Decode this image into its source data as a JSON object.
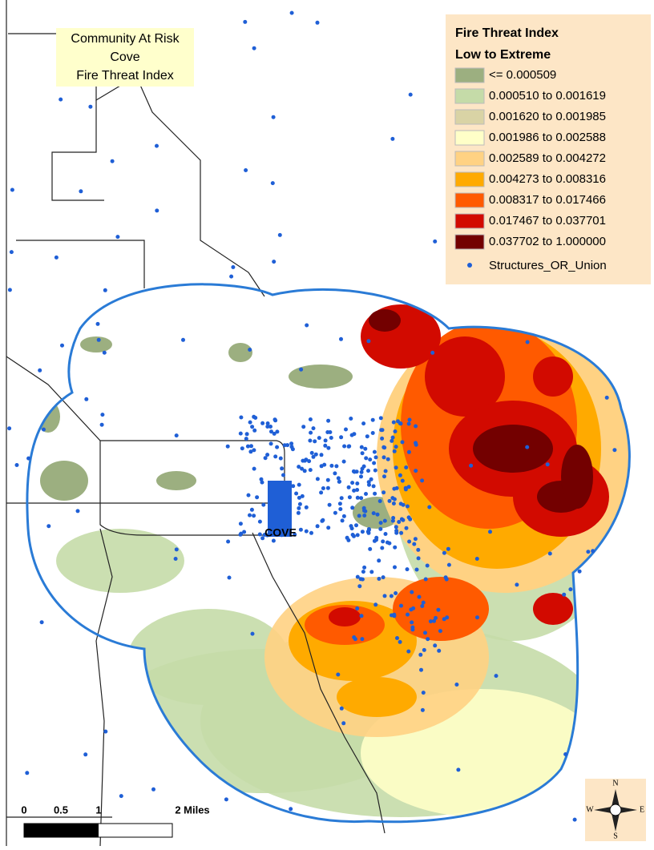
{
  "title_box": {
    "lines": [
      "Community At Risk",
      "Cove",
      "Fire Threat Index"
    ]
  },
  "legend": {
    "title": "Fire Threat Index",
    "subtitle": "Low to Extreme",
    "items": [
      {
        "label": "<=  0.000509",
        "color": "#9caf80"
      },
      {
        "label": "0.000510  to  0.001619",
        "color": "#c5dba8"
      },
      {
        "label": "0.001620  to  0.001985",
        "color": "#d9d3a5"
      },
      {
        "label": "0.001986  to  0.002588",
        "color": "#ffffc8"
      },
      {
        "label": "0.002589  to  0.004272",
        "color": "#ffd283"
      },
      {
        "label": "0.004273  to  0.008316",
        "color": "#ffaa00"
      },
      {
        "label": "0.008317  to  0.017466",
        "color": "#ff5a00"
      },
      {
        "label": "0.017467  to  0.037701",
        "color": "#d20a00"
      },
      {
        "label": "0.037702  to  1.000000",
        "color": "#730000"
      }
    ],
    "points": {
      "label": "Structures_OR_Union",
      "color": "#1f5fd6"
    }
  },
  "map_labels": {
    "town": "COVE"
  },
  "scale_bar": {
    "labels": [
      "0",
      "0.5",
      "1",
      "2 Miles"
    ]
  },
  "compass": {
    "labels": [
      "N",
      "E",
      "S",
      "W"
    ]
  }
}
